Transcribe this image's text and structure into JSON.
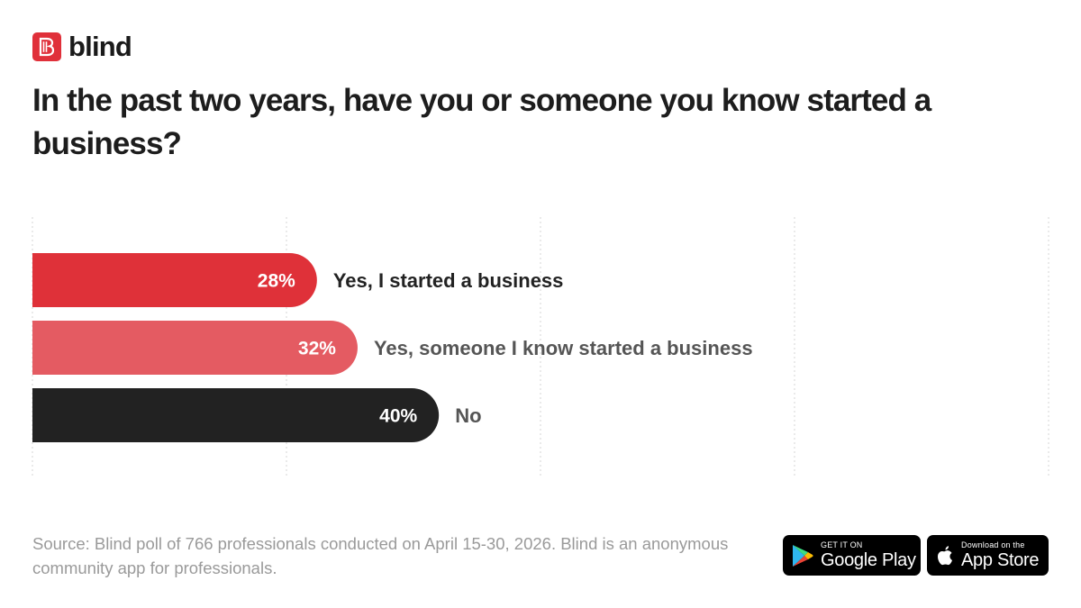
{
  "brand": {
    "name": "blind"
  },
  "title": "In the past two years, have you or someone you know started a business?",
  "chart_data": {
    "type": "bar",
    "orientation": "horizontal",
    "xlim": [
      0,
      100
    ],
    "grid": true,
    "categories": [
      "Yes, I started a business",
      "Yes, someone I know started a business",
      "No"
    ],
    "values": [
      28,
      32,
      40
    ],
    "value_labels": [
      "28%",
      "32%",
      "40%"
    ],
    "colors": [
      "#df3139",
      "#e45b62",
      "#222222"
    ],
    "label_colors": [
      "#222222",
      "#555555",
      "#555555"
    ]
  },
  "source": "Source: Blind poll of 766 professionals conducted on April 15-30, 2026. Blind is an anonymous community app for professionals.",
  "badges": {
    "google_play": {
      "small": "GET IT ON",
      "big": "Google Play"
    },
    "app_store": {
      "small": "Download on the",
      "big": "App Store"
    }
  }
}
